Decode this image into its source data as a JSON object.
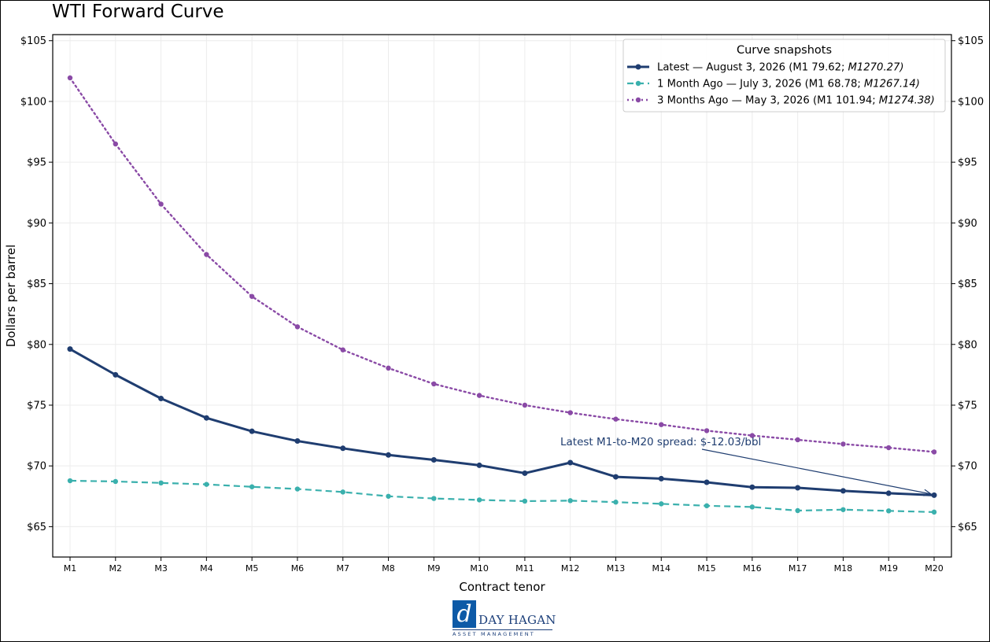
{
  "chart_data": {
    "type": "line",
    "title": "WTI Forward Curve",
    "xlabel": "Contract tenor",
    "ylabel": "Dollars per barrel",
    "ylim": [
      62.5,
      105.5
    ],
    "y_ticks": [
      65,
      70,
      75,
      80,
      85,
      90,
      95,
      100,
      105
    ],
    "y_tick_labels": [
      "$65",
      "$70",
      "$75",
      "$80",
      "$85",
      "$90",
      "$95",
      "$100",
      "$105"
    ],
    "right_axis_mirrored": true,
    "grid": true,
    "categories": [
      "M1",
      "M2",
      "M3",
      "M4",
      "M5",
      "M6",
      "M7",
      "M8",
      "M9",
      "M10",
      "M11",
      "M12",
      "M13",
      "M14",
      "M15",
      "M16",
      "M17",
      "M18",
      "M19",
      "M20"
    ],
    "legend": {
      "title": "Curve snapshots",
      "placement": "top-right"
    },
    "series": [
      {
        "name": "Latest — August 3, 2026 (M1 79.62; M12 70.27)",
        "legend_parts": [
          "Latest — August 3, 2026 (M1 79.62;",
          "M1270.27)"
        ],
        "color": "#1f3d70",
        "style": "solid",
        "values": [
          79.62,
          77.5,
          75.55,
          73.95,
          72.85,
          72.05,
          71.45,
          70.9,
          70.5,
          70.05,
          69.4,
          70.27,
          69.1,
          68.95,
          68.65,
          68.25,
          68.2,
          67.95,
          67.75,
          67.59
        ]
      },
      {
        "name": "1 Month Ago — July 3, 2026 (M1 68.78; M12 67.14)",
        "legend_parts": [
          "1 Month Ago — July 3, 2026 (M1 68.78;",
          "M1267.14)"
        ],
        "color": "#3ab0ad",
        "style": "dashed",
        "values": [
          68.78,
          68.72,
          68.6,
          68.48,
          68.28,
          68.1,
          67.85,
          67.5,
          67.32,
          67.2,
          67.1,
          67.14,
          67.02,
          66.88,
          66.72,
          66.62,
          66.32,
          66.4,
          66.3,
          66.2
        ]
      },
      {
        "name": "3 Months Ago — May 3, 2026 (M1 101.94; M12 74.38)",
        "legend_parts": [
          "3 Months Ago — May 3, 2026 (M1 101.94;",
          "M1274.38)"
        ],
        "color": "#8a4aa6",
        "style": "dotted",
        "values": [
          101.94,
          96.5,
          91.55,
          87.4,
          83.95,
          81.45,
          79.55,
          78.05,
          76.75,
          75.8,
          75.0,
          74.38,
          73.85,
          73.4,
          72.9,
          72.5,
          72.15,
          71.8,
          71.5,
          71.15
        ]
      }
    ],
    "annotation": {
      "text": "Latest M1-to-M20 spread: $-12.03/bbl",
      "color": "#1f3d70",
      "anchor": "M20",
      "anchor_series": "Latest"
    }
  },
  "logo": {
    "mark": "d",
    "name": "DAY HAGAN",
    "subtitle": "ASSET MANAGEMENT"
  }
}
